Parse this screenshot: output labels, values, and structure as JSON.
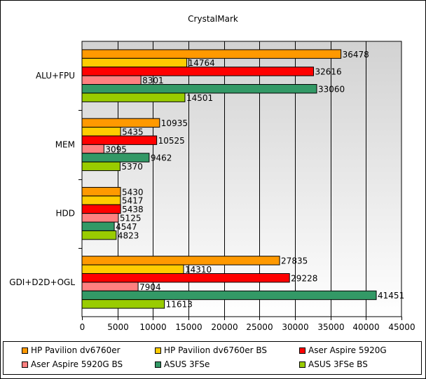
{
  "chart_data": {
    "type": "bar",
    "orientation": "horizontal",
    "title": "CrystalMark",
    "xlabel": "",
    "ylabel": "",
    "xlim": [
      0,
      45000
    ],
    "x_ticks": [
      0,
      5000,
      10000,
      15000,
      20000,
      25000,
      30000,
      35000,
      40000,
      45000
    ],
    "tick_labels": [
      "0",
      "5000",
      "10000",
      "15000",
      "20000",
      "25000",
      "30000",
      "35000",
      "40000",
      "45000"
    ],
    "grid": true,
    "legend_position": "bottom",
    "categories": [
      "ALU+FPU",
      "MEM",
      "HDD",
      "GDI+D2D+OGL"
    ],
    "series": [
      {
        "name": "HP Pavilion dv6760er",
        "color": "#ff9900",
        "values": [
          36478,
          10935,
          5430,
          27835
        ]
      },
      {
        "name": "HP Pavilion dv6760er BS",
        "color": "#ffcc00",
        "values": [
          14764,
          5435,
          5417,
          14310
        ]
      },
      {
        "name": "Aser Aspire 5920G",
        "color": "#ff0000",
        "values": [
          32616,
          10525,
          5438,
          29228
        ]
      },
      {
        "name": "Aser Aspire 5920G BS",
        "color": "#ff8080",
        "values": [
          8301,
          3095,
          5125,
          7904
        ]
      },
      {
        "name": "ASUS 3FSe",
        "color": "#339966",
        "values": [
          33060,
          9462,
          4547,
          41451
        ]
      },
      {
        "name": "ASUS 3FSe BS",
        "color": "#99cc00",
        "values": [
          14501,
          5370,
          4823,
          11613
        ]
      }
    ]
  }
}
